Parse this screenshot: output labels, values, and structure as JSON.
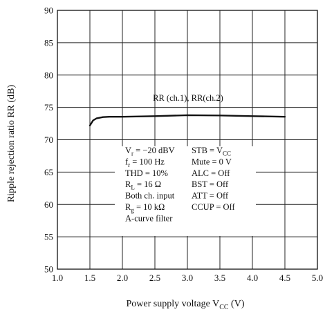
{
  "chart_data": {
    "type": "line",
    "title": "",
    "xlabel": "Power supply voltage  V",
    "xlabel_sub": "CC",
    "xlabel_unit": " (V)",
    "ylabel": "Ripple rejection ratio  RR  (dB)",
    "xlim": [
      1.0,
      5.0
    ],
    "ylim": [
      50,
      90
    ],
    "xticks": [
      "1.0",
      "1.5",
      "2.0",
      "2.5",
      "3.0",
      "3.5",
      "4.0",
      "4.5",
      "5.0"
    ],
    "yticks": [
      "50",
      "55",
      "60",
      "65",
      "70",
      "75",
      "80",
      "85",
      "90"
    ],
    "grid": true,
    "series": [
      {
        "name": "RR (ch.1), RR(ch.2)",
        "x": [
          1.5,
          1.55,
          1.6,
          1.7,
          1.8,
          2.0,
          2.5,
          3.0,
          3.5,
          4.0,
          4.5
        ],
        "y": [
          72.2,
          73.0,
          73.3,
          73.5,
          73.55,
          73.55,
          73.65,
          73.8,
          73.75,
          73.65,
          73.55
        ]
      }
    ],
    "annotations": {
      "series_label": "RR (ch.1), RR(ch.2)",
      "conditions_left": [
        {
          "main": "V",
          "sub": "r",
          "rest": " = −20 dBV"
        },
        {
          "main": "f",
          "sub": "r",
          "rest": " = 100 Hz"
        },
        {
          "main": "THD = 10%",
          "sub": "",
          "rest": ""
        },
        {
          "main": "R",
          "sub": "L",
          "rest": " = 16 Ω"
        },
        {
          "main": "Both ch. input",
          "sub": "",
          "rest": ""
        },
        {
          "main": "R",
          "sub": "g",
          "rest": " = 10 kΩ"
        },
        {
          "main": "A-curve filter",
          "sub": "",
          "rest": ""
        }
      ],
      "conditions_right": [
        {
          "main": "STB = V",
          "sub": "CC",
          "rest": ""
        },
        {
          "main": "Mute = 0 V",
          "sub": "",
          "rest": ""
        },
        {
          "main": "ALC = Off",
          "sub": "",
          "rest": ""
        },
        {
          "main": "BST = Off",
          "sub": "",
          "rest": ""
        },
        {
          "main": "ATT = Off",
          "sub": "",
          "rest": ""
        },
        {
          "main": "CCUP = Off",
          "sub": "",
          "rest": ""
        }
      ]
    }
  }
}
